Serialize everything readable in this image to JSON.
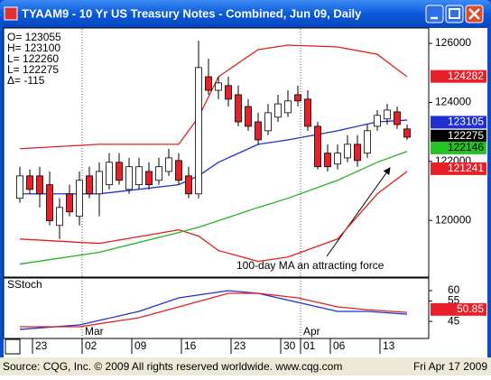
{
  "window": {
    "title": "TYAAM9 - 10 Yr US Treasury Notes - Combined, Jun 09, Daily"
  },
  "readout": [
    "O=  123055",
    "H=  123100",
    "L=  122260",
    "L=  122275",
    "Δ=     -115"
  ],
  "footer": {
    "source": "Source: CQG, Inc. © 2009 All rights reserved worldwide. www.cqg.com",
    "date": "Fri Apr 17 2009"
  },
  "chart_data": [
    {
      "type": "candlestick",
      "annotation": "100-day MA an attracting force",
      "categories": [
        null,
        null,
        "23",
        null,
        null,
        null,
        null,
        "02",
        null,
        null,
        null,
        null,
        "09",
        null,
        null,
        null,
        null,
        "16",
        null,
        null,
        null,
        null,
        "23",
        null,
        null,
        null,
        null,
        "30",
        null,
        "01",
        null,
        null,
        "06",
        null,
        null,
        null,
        null,
        "13",
        null,
        null
      ],
      "months": [
        null,
        null,
        null,
        null,
        null,
        null,
        null,
        "Mar",
        null,
        null,
        null,
        null,
        null,
        null,
        null,
        null,
        null,
        null,
        null,
        null,
        null,
        null,
        null,
        null,
        null,
        null,
        null,
        null,
        null,
        "Apr",
        null,
        null,
        null,
        null,
        null,
        null,
        null,
        null,
        null,
        null
      ],
      "open": [
        120.75,
        121.51,
        121.51,
        121.21,
        119.83,
        120.9,
        120.14,
        121.51,
        120.9,
        121.21,
        121.97,
        121.05,
        121.21,
        121.66,
        121.36,
        121.66,
        122.03,
        121.51,
        120.9,
        124.87,
        124.41,
        124.57,
        124.26,
        123.86,
        123.34,
        123.04,
        123.5,
        123.65,
        124.26,
        124.11,
        123.19,
        122.28,
        121.91,
        122.12,
        122.58,
        122.28,
        123.19,
        123.44,
        123.68,
        123.1
      ],
      "high": [
        121.82,
        121.73,
        121.82,
        121.66,
        120.75,
        121.21,
        121.66,
        121.82,
        121.97,
        122.28,
        122.28,
        122.12,
        122.12,
        121.97,
        122.12,
        122.43,
        122.28,
        121.82,
        126.09,
        125.48,
        124.87,
        124.87,
        124.57,
        124.11,
        123.65,
        123.95,
        124.26,
        124.41,
        124.57,
        124.41,
        123.34,
        122.58,
        122.58,
        122.89,
        122.89,
        123.25,
        123.74,
        123.95,
        123.86,
        123.25
      ],
      "low": [
        120.6,
        120.9,
        120.44,
        119.83,
        119.37,
        120.14,
        119.83,
        120.75,
        120.14,
        121.05,
        121.21,
        120.9,
        121.05,
        121.05,
        121.21,
        121.51,
        121.21,
        120.75,
        120.75,
        124.26,
        124.11,
        123.86,
        123.19,
        123.04,
        122.58,
        122.89,
        123.34,
        123.5,
        123.86,
        123.04,
        121.73,
        121.66,
        121.73,
        121.97,
        121.82,
        122.12,
        123.04,
        123.25,
        123.1,
        122.73
      ],
      "close": [
        121.51,
        121.05,
        120.9,
        119.99,
        120.44,
        120.29,
        121.36,
        120.9,
        121.66,
        121.97,
        121.36,
        121.82,
        121.82,
        121.21,
        121.82,
        122.12,
        121.36,
        120.9,
        125.18,
        124.41,
        124.66,
        124.11,
        123.34,
        123.19,
        122.73,
        123.65,
        123.95,
        124.05,
        124.05,
        123.19,
        121.82,
        121.82,
        122.28,
        122.58,
        122.03,
        123.04,
        123.56,
        123.74,
        123.25,
        122.82
      ],
      "up_color": "#ffffff",
      "down_color": "#e8202a",
      "series": [
        {
          "color": "#e02020",
          "x": [
            0,
            8,
            16,
            18,
            20,
            24,
            27,
            32,
            36,
            39
          ],
          "values": [
            122.43,
            122.58,
            122.58,
            123.5,
            124.87,
            125.79,
            125.94,
            125.88,
            125.63,
            124.87
          ]
        },
        {
          "color": "#e02020",
          "x": [
            0,
            8,
            16,
            18,
            20,
            24,
            27,
            32,
            36,
            39
          ],
          "values": [
            119.37,
            119.22,
            119.68,
            119.47,
            118.98,
            118.61,
            118.76,
            119.37,
            120.9,
            121.66
          ]
        },
        {
          "color": "#1f2fd0",
          "x": [
            0,
            8,
            16,
            18,
            20,
            24,
            27,
            32,
            36,
            39
          ],
          "values": [
            120.9,
            120.9,
            121.21,
            121.51,
            121.97,
            122.58,
            122.73,
            123.04,
            123.34,
            123.4
          ]
        },
        {
          "color": "#22b322",
          "x": [
            0,
            8,
            16,
            18,
            20,
            24,
            27,
            32,
            36,
            39
          ],
          "values": [
            118.52,
            118.92,
            119.59,
            119.77,
            119.99,
            120.44,
            120.75,
            121.36,
            121.97,
            122.34
          ]
        }
      ],
      "last_values": {
        "values": [
          124.881,
          123.328,
          122.859,
          122.456,
          121.753
        ],
        "value_labels": [
          "124282",
          "123105",
          "122275",
          "122146",
          "121241"
        ],
        "colors": [
          "#e8202a",
          "#1f2fd0",
          "#000000",
          "#22c322",
          "#e8202a"
        ]
      },
      "ylim": [
        118.14,
        126.4
      ],
      "yticks": [
        {
          "value": 120,
          "label": "120000"
        },
        {
          "value": 122,
          "label": "122000"
        },
        {
          "value": 124,
          "label": "124000"
        },
        {
          "value": 126,
          "label": "126000"
        }
      ]
    },
    {
      "type": "line",
      "title": "SStoch",
      "series": [
        {
          "color": "#1f2fd0",
          "x": [
            0,
            6,
            12,
            16,
            21,
            24,
            28,
            32,
            35,
            39
          ],
          "values": [
            41.1,
            43.3,
            49.9,
            56.5,
            60,
            58.7,
            54.3,
            49.9,
            49.9,
            48.5
          ]
        },
        {
          "color": "#e02020",
          "x": [
            0,
            6,
            12,
            16,
            21,
            24,
            28,
            32,
            35,
            39
          ],
          "values": [
            42.4,
            42.4,
            46.8,
            52.1,
            58.7,
            58.7,
            56.5,
            52.1,
            50.7,
            49.4
          ]
        }
      ],
      "last_value": 50.85,
      "last_color": "#e8202a",
      "ylim": [
        38,
        65.3
      ],
      "yticks": [
        45,
        55,
        60
      ]
    }
  ]
}
